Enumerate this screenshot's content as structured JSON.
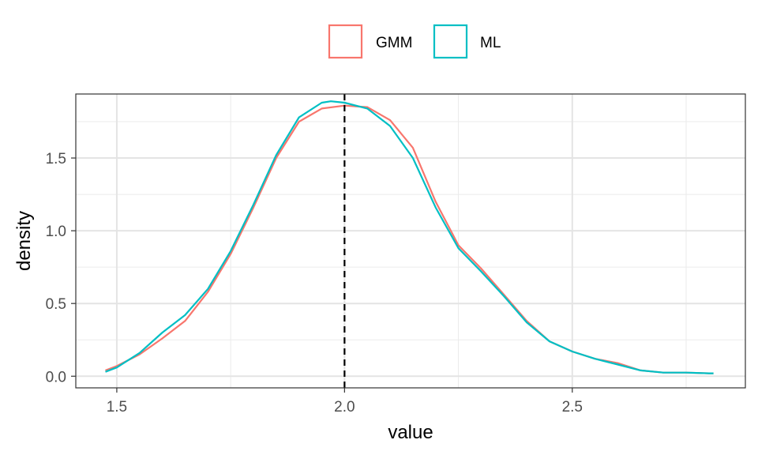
{
  "chart_data": {
    "type": "line",
    "xlabel": "value",
    "ylabel": "density",
    "xlim": [
      1.41,
      2.88
    ],
    "ylim": [
      -0.08,
      1.94
    ],
    "x_ticks": [
      1.5,
      2.0,
      2.5
    ],
    "x_tick_labels": [
      "1.5",
      "2.0",
      "2.5"
    ],
    "x_minor_ticks": [
      1.75,
      2.25,
      2.75
    ],
    "y_ticks": [
      0.0,
      0.5,
      1.0,
      1.5
    ],
    "y_tick_labels": [
      "0.0",
      "0.5",
      "1.0",
      "1.5"
    ],
    "y_minor_ticks": [
      0.25,
      0.75,
      1.25,
      1.75
    ],
    "grid": true,
    "legend_position": "top",
    "reference_line": {
      "x": 2.0,
      "style": "dashed",
      "color": "#000000"
    },
    "series": [
      {
        "name": "GMM",
        "color": "#F8766D",
        "x": [
          1.475,
          1.5,
          1.55,
          1.6,
          1.65,
          1.7,
          1.75,
          1.8,
          1.85,
          1.9,
          1.95,
          2.0,
          2.05,
          2.1,
          2.15,
          2.2,
          2.25,
          2.3,
          2.35,
          2.4,
          2.45,
          2.5,
          2.55,
          2.6,
          2.65,
          2.7,
          2.75,
          2.8,
          2.81
        ],
        "y": [
          0.04,
          0.07,
          0.15,
          0.26,
          0.38,
          0.58,
          0.84,
          1.16,
          1.5,
          1.75,
          1.84,
          1.86,
          1.85,
          1.76,
          1.57,
          1.2,
          0.9,
          0.74,
          0.56,
          0.38,
          0.24,
          0.17,
          0.12,
          0.09,
          0.04,
          0.025,
          0.025,
          0.02,
          0.02
        ]
      },
      {
        "name": "ML",
        "color": "#00BFC4",
        "x": [
          1.475,
          1.5,
          1.55,
          1.6,
          1.65,
          1.7,
          1.75,
          1.8,
          1.85,
          1.9,
          1.95,
          1.97,
          2.0,
          2.05,
          2.1,
          2.15,
          2.2,
          2.25,
          2.3,
          2.35,
          2.4,
          2.45,
          2.5,
          2.55,
          2.6,
          2.65,
          2.7,
          2.75,
          2.8,
          2.81
        ],
        "y": [
          0.03,
          0.06,
          0.16,
          0.3,
          0.42,
          0.6,
          0.86,
          1.18,
          1.52,
          1.78,
          1.88,
          1.89,
          1.88,
          1.84,
          1.72,
          1.5,
          1.16,
          0.88,
          0.72,
          0.55,
          0.37,
          0.24,
          0.17,
          0.12,
          0.08,
          0.04,
          0.025,
          0.025,
          0.02,
          0.02
        ]
      }
    ]
  }
}
